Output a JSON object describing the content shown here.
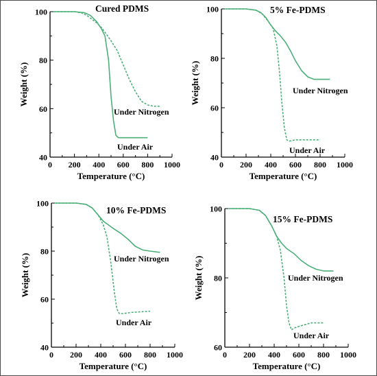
{
  "colors": {
    "curve": "#4caf79",
    "axis": "#000000",
    "frame": "#4a4a4a"
  },
  "chart_data": [
    {
      "type": "line",
      "title": "Cured PDMS",
      "xlabel": "Temperature (°C)",
      "ylabel": "Weight (%)",
      "xlim": [
        0,
        1000
      ],
      "ylim": [
        40,
        100
      ],
      "xticks": [
        0,
        200,
        400,
        600,
        800,
        1000
      ],
      "yticks": [
        40,
        60,
        80,
        100
      ],
      "series": [
        {
          "dashed": false,
          "x": [
            30,
            200,
            280,
            330,
            380,
            420,
            450,
            480,
            500,
            520,
            540,
            560,
            600,
            700,
            800
          ],
          "y": [
            100,
            100,
            99.6,
            98.5,
            96,
            93,
            90,
            80,
            65,
            55,
            49,
            48,
            48,
            48,
            48
          ]
        },
        {
          "dashed": true,
          "x": [
            30,
            200,
            260,
            300,
            340,
            380,
            420,
            450,
            500,
            550,
            600,
            650,
            700,
            750,
            800,
            850,
            900
          ],
          "y": [
            100,
            100,
            99.5,
            98.5,
            97,
            95.5,
            93.5,
            91.5,
            88,
            84,
            78,
            72,
            67,
            63,
            61.5,
            61,
            61
          ]
        }
      ],
      "annotations": [
        "Under Nitrogen",
        "Under Air"
      ]
    },
    {
      "type": "line",
      "title": "5% Fe-PDMS",
      "xlabel": "Temperature (°C)",
      "ylabel": "Weight (%)",
      "xlim": [
        0,
        1000
      ],
      "ylim": [
        40,
        100
      ],
      "xticks": [
        0,
        200,
        400,
        600,
        800,
        1000
      ],
      "yticks": [
        40,
        60,
        80,
        100
      ],
      "series": [
        {
          "dashed": false,
          "x": [
            30,
            200,
            280,
            320,
            360,
            400,
            440,
            480,
            520,
            560,
            600,
            650,
            700,
            750,
            800,
            850,
            880
          ],
          "y": [
            100,
            100,
            99.5,
            98.5,
            96.5,
            93.5,
            91,
            89,
            86.5,
            83,
            79,
            75,
            72.5,
            71.5,
            71.5,
            71.5,
            71.5
          ]
        },
        {
          "dashed": true,
          "x": [
            30,
            200,
            280,
            330,
            380,
            420,
            450,
            470,
            490,
            510,
            530,
            550,
            600,
            700,
            800
          ],
          "y": [
            100,
            100,
            99.5,
            98,
            95,
            92,
            85,
            75,
            62,
            52,
            47,
            46.5,
            47,
            47,
            47
          ]
        }
      ],
      "annotations": [
        "Under Nitrogen",
        "Under Air"
      ]
    },
    {
      "type": "line",
      "title": "10% Fe-PDMS",
      "xlabel": "Temperature (°C)",
      "ylabel": "Weight (%)",
      "xlim": [
        0,
        1000
      ],
      "ylim": [
        40,
        100
      ],
      "xticks": [
        0,
        200,
        400,
        600,
        800,
        1000
      ],
      "yticks": [
        40,
        60,
        80,
        100
      ],
      "series": [
        {
          "dashed": false,
          "x": [
            30,
            200,
            280,
            330,
            380,
            420,
            460,
            500,
            560,
            620,
            680,
            740,
            800,
            880
          ],
          "y": [
            100,
            100,
            99.5,
            98,
            95,
            92.5,
            91,
            89.5,
            87.5,
            85,
            82,
            80.5,
            80,
            79.5
          ]
        },
        {
          "dashed": true,
          "x": [
            30,
            200,
            280,
            330,
            380,
            420,
            450,
            480,
            510,
            530,
            550,
            580,
            650,
            800
          ],
          "y": [
            100,
            100,
            99.5,
            98,
            95,
            91,
            86,
            76,
            63,
            56,
            54,
            54,
            54.5,
            55
          ]
        }
      ],
      "annotations": [
        "Under Nitrogen",
        "Under Air"
      ]
    },
    {
      "type": "line",
      "title": "15% Fe-PDMS",
      "xlabel": "Temperature (°C)",
      "ylabel": "Weight (%)",
      "xlim": [
        0,
        1000
      ],
      "ylim": [
        60,
        100
      ],
      "xticks": [
        0,
        200,
        400,
        600,
        800,
        1000
      ],
      "yticks": [
        60,
        80,
        100
      ],
      "series": [
        {
          "dashed": false,
          "x": [
            30,
            200,
            280,
            330,
            380,
            420,
            460,
            500,
            560,
            620,
            680,
            740,
            800,
            880
          ],
          "y": [
            100,
            100,
            99.5,
            98,
            95,
            92,
            90,
            88.5,
            87,
            85,
            83.5,
            82.5,
            82,
            82
          ]
        },
        {
          "dashed": true,
          "x": [
            30,
            200,
            280,
            330,
            380,
            420,
            450,
            480,
            500,
            520,
            540,
            560,
            600,
            700,
            800
          ],
          "y": [
            100,
            100,
            99.5,
            98,
            95,
            92,
            88,
            80,
            72,
            67,
            65,
            65.5,
            66,
            67,
            67
          ]
        }
      ],
      "annotations": [
        "Under Nitrogen",
        "Under Air"
      ]
    }
  ]
}
